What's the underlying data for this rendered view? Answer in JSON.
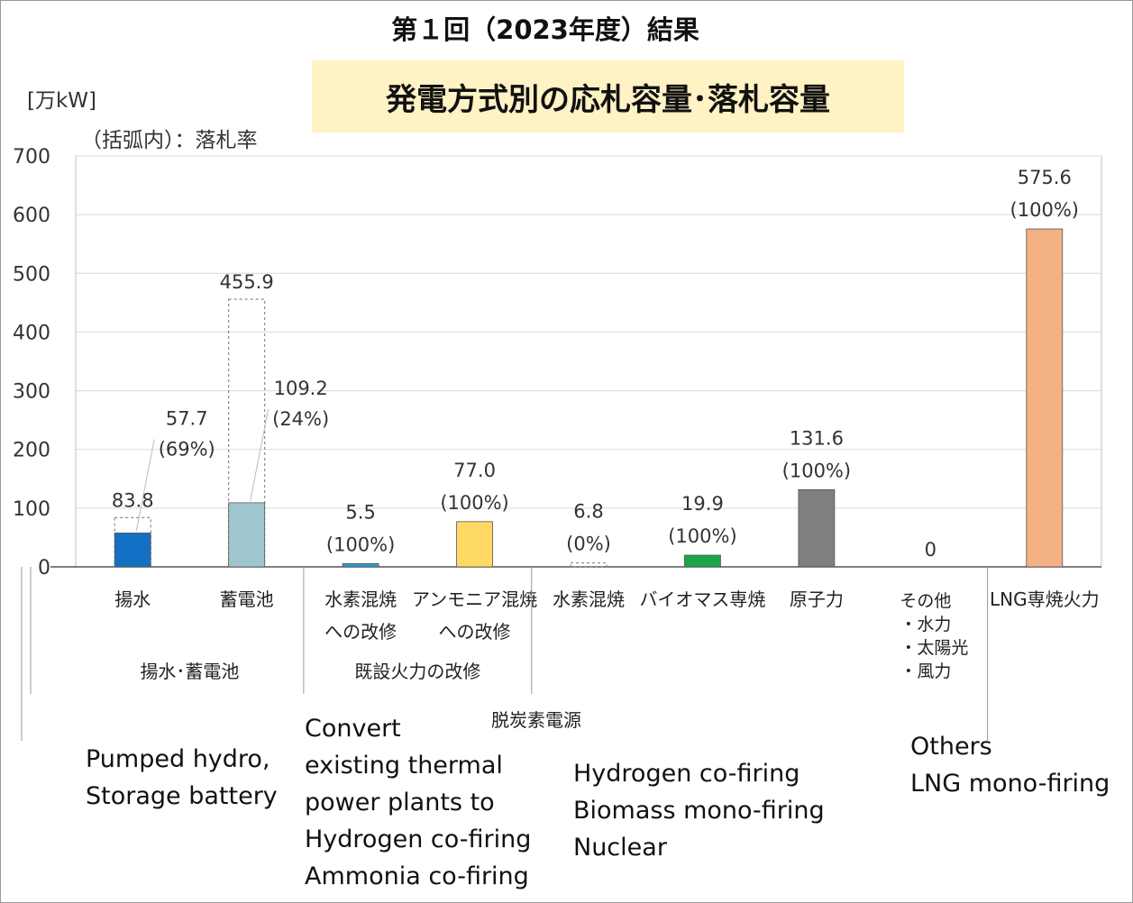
{
  "header": {
    "title": "第１回（2023年度）結果",
    "subtitle": "発電方式別の応札容量･落札容量",
    "unit": "[万kW]",
    "note": "（括弧内）：落札率"
  },
  "chart_data": {
    "type": "bar",
    "ylim": [
      0,
      700
    ],
    "yticks": [
      "0",
      "100",
      "200",
      "300",
      "400",
      "500",
      "600",
      "700"
    ],
    "grid": true,
    "categories": [
      "揚水",
      "蓄電池",
      "水素混焼への改修",
      "アンモニア混焼への改修",
      "水素混焼",
      "バイオマス専焼",
      "原子力",
      "その他・水力・太陽光・風力",
      "LNG専焼火力"
    ],
    "category_lines": [
      [
        "揚水"
      ],
      [
        "蓄電池"
      ],
      [
        "水素混焼",
        "への改修"
      ],
      [
        "アンモニア混焼",
        "への改修"
      ],
      [
        "水素混焼"
      ],
      [
        "バイオマス専焼"
      ],
      [
        "原子力"
      ],
      [
        "その他",
        "・水力",
        "・太陽光",
        "・風力"
      ],
      [
        "LNG専焼火力"
      ]
    ],
    "groups": [
      {
        "label": "揚水･蓄電池",
        "members": [
          0,
          1
        ]
      },
      {
        "label": "既設火力の改修",
        "members": [
          2,
          3
        ]
      },
      {
        "label": "脱炭素電源",
        "members": [
          4,
          5,
          6,
          7
        ]
      }
    ],
    "series": [
      {
        "name": "応札容量",
        "values": [
          83.8,
          455.9,
          5.5,
          77.0,
          6.8,
          19.9,
          131.6,
          0,
          575.6
        ]
      },
      {
        "name": "落札容量",
        "values": [
          57.7,
          109.2,
          5.5,
          77.0,
          0,
          19.9,
          131.6,
          0,
          575.6
        ]
      }
    ],
    "bid_labels": [
      "83.8",
      "455.9",
      "5.5",
      "77.0",
      "6.8",
      "19.9",
      "131.6",
      "0",
      "575.6"
    ],
    "award_labels": [
      "57.7",
      "109.2",
      "",
      "",
      "",
      "",
      "",
      "",
      ""
    ],
    "rate_labels": [
      "(69%)",
      "(24%)",
      "(100%)",
      "(100%)",
      "(0%)",
      "(100%)",
      "(100%)",
      "",
      "(100%)"
    ],
    "colors": [
      "#1470c4",
      "#9fc6cf",
      "#2e9bd6",
      "#ffd966",
      "#c7c7c7",
      "#1aa64a",
      "#7f7f7f",
      "#cccccc",
      "#f4b183"
    ]
  },
  "english_notes": [
    "Pumped hydro,\nStorage battery",
    "Convert\nexisting thermal\npower plants to\nHydrogen co-firing\nAmmonia co-firing",
    "Hydrogen co-firing\nBiomass mono-firing\nNuclear",
    "Others\nLNG mono-firing"
  ]
}
